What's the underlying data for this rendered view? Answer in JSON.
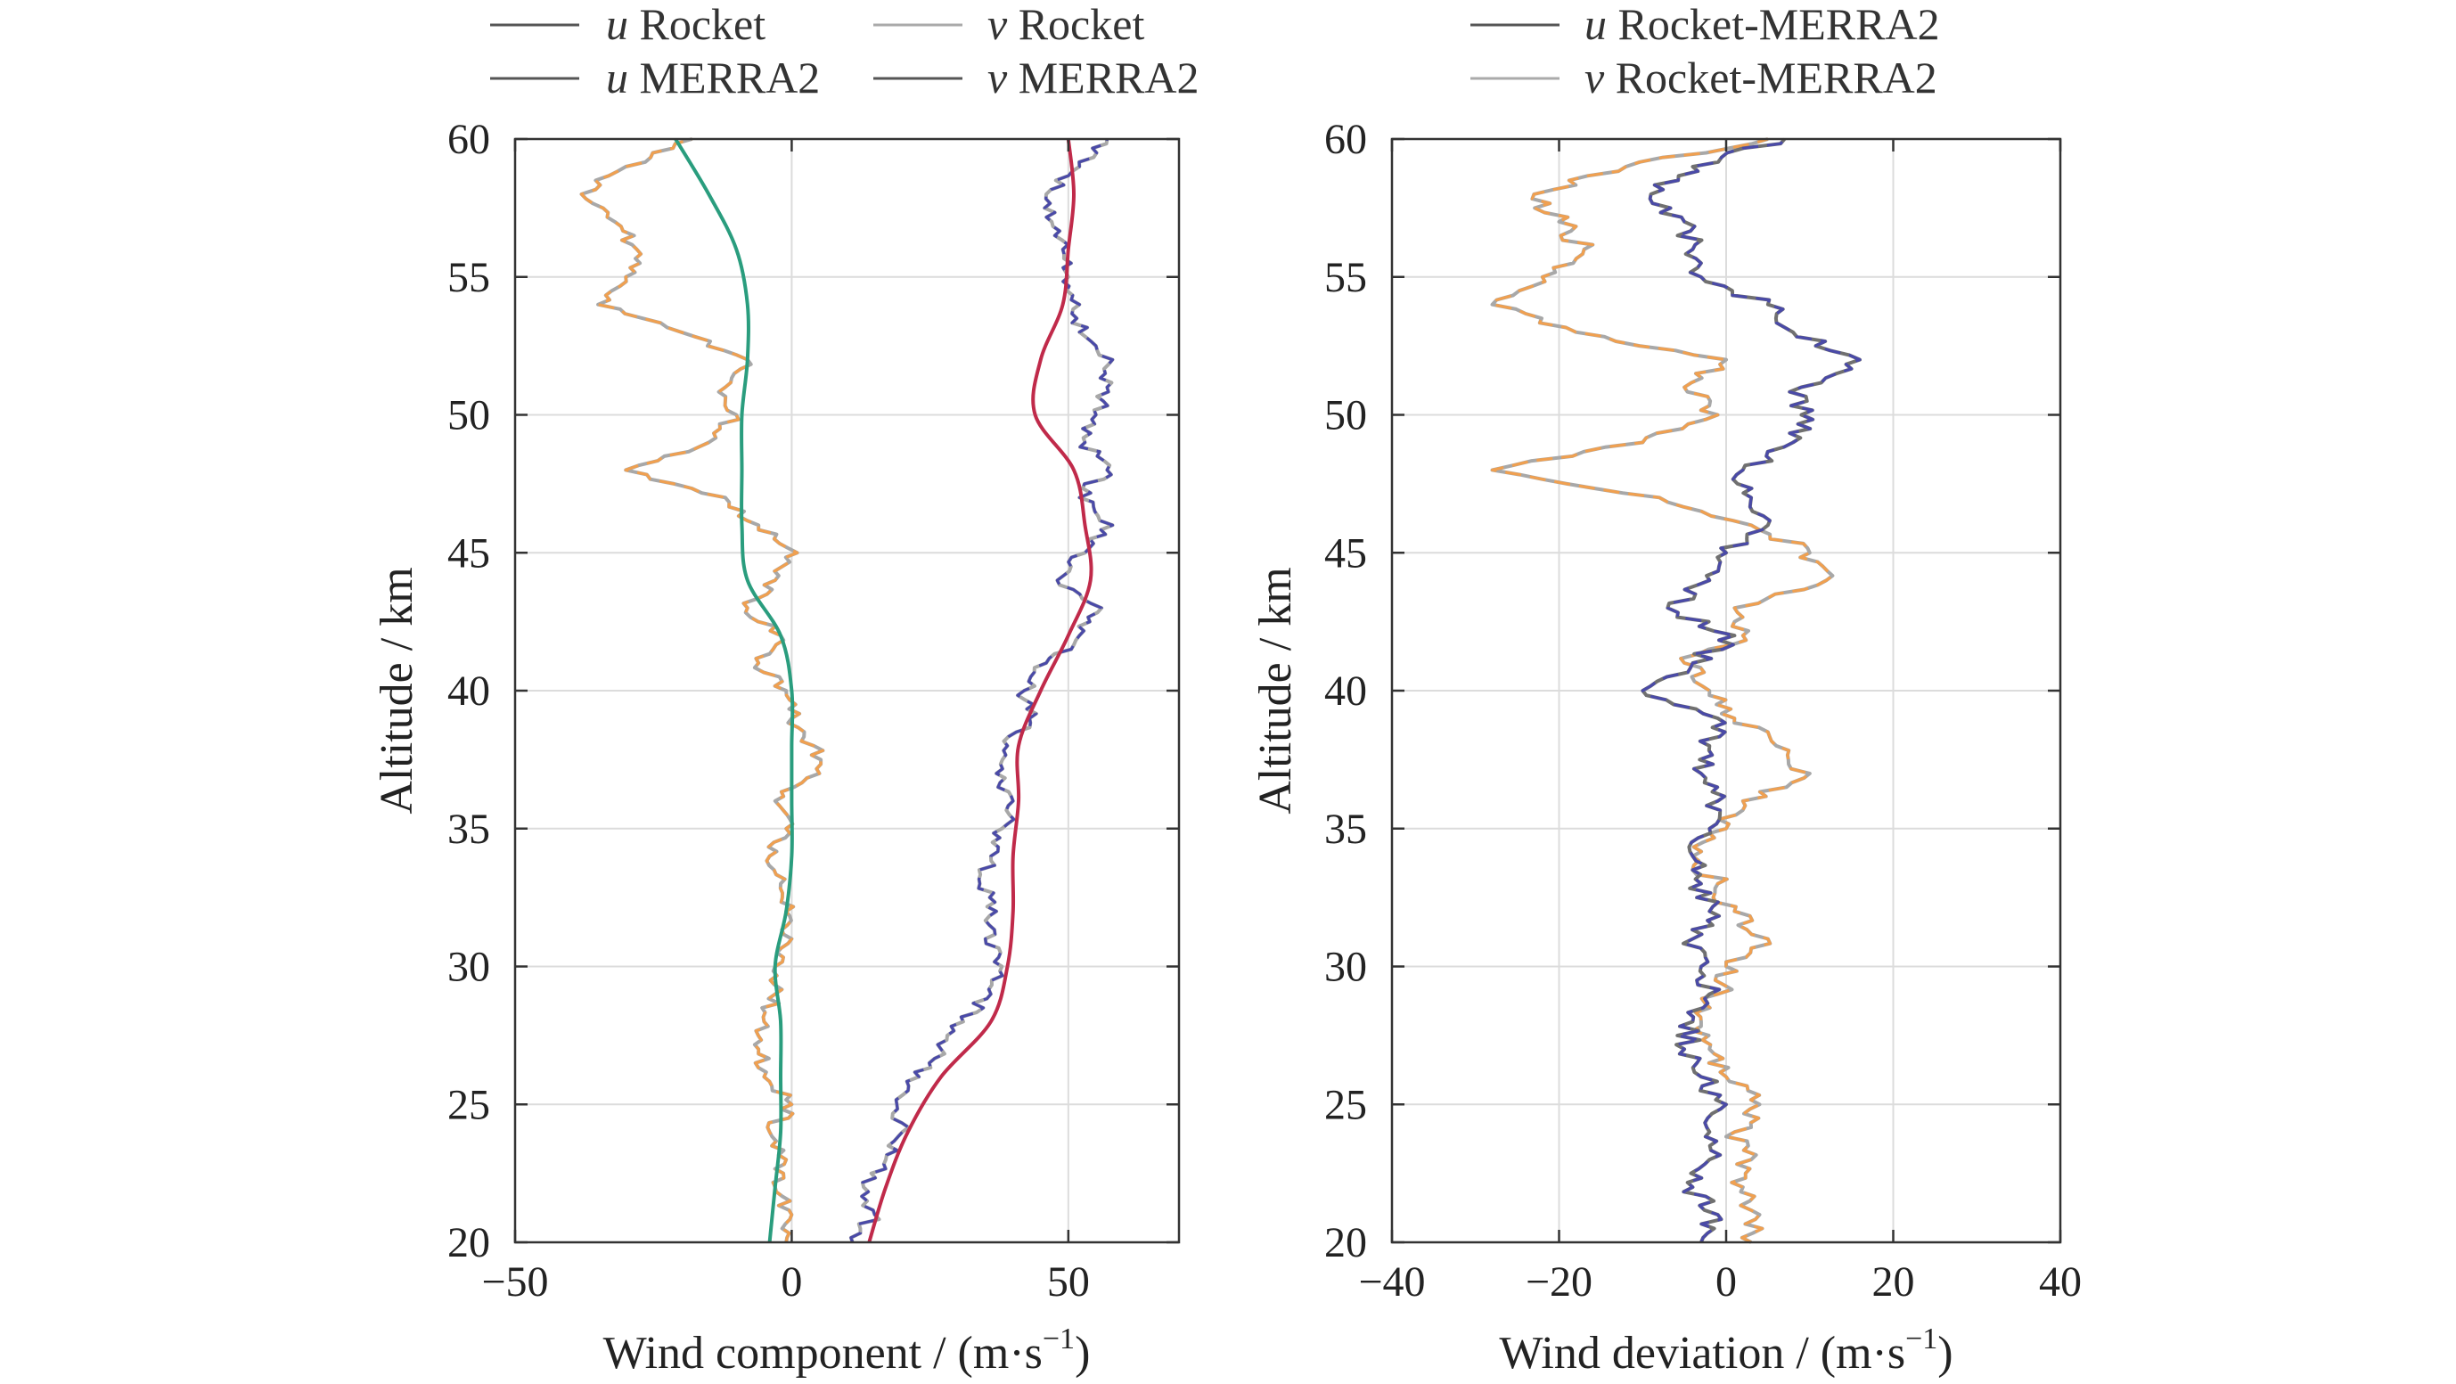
{
  "chart_data": [
    {
      "type": "line",
      "orientation": "profile",
      "xlabel": "Wind component / (m·s",
      "xlabel_sup": "−1",
      "xlabel_end": ")",
      "ylabel": "Altitude / km",
      "xlim": [
        -50,
        70
      ],
      "ylim": [
        20,
        60
      ],
      "xticks": [
        -50,
        0,
        50
      ],
      "xtick_labels": [
        "−50",
        "0",
        "50"
      ],
      "yticks": [
        20,
        25,
        30,
        35,
        40,
        45,
        50,
        55,
        60
      ],
      "ytick_labels": [
        "20",
        "25",
        "30",
        "35",
        "40",
        "45",
        "50",
        "55",
        "60"
      ],
      "grid": true,
      "legend": [
        "u Rocket",
        "v Rocket",
        "u MERRA2",
        "v MERRA2"
      ],
      "series": [
        {
          "name": "u Rocket",
          "var": "u",
          "label": " Rocket",
          "color": "#f0a050",
          "color2": "#a8a8a8",
          "style": "noisy",
          "y": [
            20,
            21,
            22,
            23,
            24,
            25,
            26,
            27,
            28,
            29,
            30,
            31,
            32,
            33,
            34,
            35,
            36,
            37,
            38,
            39,
            40,
            41,
            42,
            43,
            44,
            45,
            46,
            47,
            48,
            49,
            50,
            51,
            52,
            53,
            54,
            55,
            56,
            57,
            58,
            59,
            60
          ],
          "x": [
            -1,
            0,
            -3,
            -1,
            -4,
            0,
            -5,
            -6,
            -5,
            -3,
            -3,
            0,
            -1,
            -2,
            -4,
            -1,
            -3,
            5,
            4,
            0,
            -1,
            -6,
            -2,
            -8,
            -3,
            1,
            -6,
            -12,
            -30,
            -15,
            -10,
            -12,
            -8,
            -20,
            -35,
            -30,
            -28,
            -32,
            -38,
            -30,
            -18
          ]
        },
        {
          "name": "v Rocket",
          "var": "v",
          "label": " Rocket",
          "color": "#4a4aa8",
          "color2": "#a8a8a8",
          "style": "noisy",
          "y": [
            20,
            21,
            22,
            23,
            24,
            25,
            26,
            27,
            28,
            29,
            30,
            31,
            32,
            33,
            34,
            35,
            36,
            37,
            38,
            39,
            40,
            41,
            42,
            43,
            44,
            45,
            46,
            47,
            48,
            49,
            50,
            51,
            52,
            53,
            54,
            55,
            56,
            57,
            58,
            59,
            60
          ],
          "x": [
            11,
            15,
            13,
            17,
            20,
            19,
            23,
            27,
            31,
            36,
            38,
            35,
            37,
            34,
            36,
            38,
            40,
            37,
            39,
            43,
            42,
            46,
            52,
            56,
            48,
            53,
            58,
            52,
            57,
            53,
            55,
            57,
            58,
            52,
            52,
            50,
            49,
            47,
            46,
            52,
            57
          ]
        },
        {
          "name": "u MERRA2",
          "var": "u",
          "label": " MERRA2",
          "color": "#2a9d7e",
          "style": "smooth",
          "y": [
            20,
            22,
            24,
            26,
            28,
            30,
            32,
            34,
            36,
            38,
            40,
            42,
            44,
            46,
            48,
            50,
            52,
            54,
            56,
            58,
            60
          ],
          "x": [
            -4,
            -3,
            -2,
            -2,
            -2,
            -3,
            -1,
            0,
            0,
            0,
            0,
            -2,
            -8,
            -9,
            -9,
            -9,
            -8,
            -8,
            -10,
            -15,
            -21
          ]
        },
        {
          "name": "v MERRA2",
          "var": "v",
          "label": " MERRA2",
          "color": "#c02a4a",
          "style": "smooth",
          "y": [
            20,
            22,
            24,
            26,
            28,
            30,
            32,
            34,
            36,
            38,
            40,
            42,
            44,
            46,
            48,
            50,
            52,
            54,
            56,
            58,
            60
          ],
          "x": [
            14,
            17,
            21,
            27,
            36,
            39,
            40,
            40,
            41,
            41,
            45,
            50,
            54,
            53,
            51,
            44,
            45,
            49,
            50,
            51,
            50
          ]
        }
      ]
    },
    {
      "type": "line",
      "orientation": "profile",
      "xlabel": "Wind deviation / (m·s",
      "xlabel_sup": "−1",
      "xlabel_end": ")",
      "ylabel": "Altitude / km",
      "xlim": [
        -40,
        40
      ],
      "ylim": [
        20,
        60
      ],
      "xticks": [
        -40,
        -20,
        0,
        20,
        40
      ],
      "xtick_labels": [
        "−40",
        "−20",
        "0",
        "20",
        "40"
      ],
      "yticks": [
        20,
        25,
        30,
        35,
        40,
        45,
        50,
        55,
        60
      ],
      "ytick_labels": [
        "20",
        "25",
        "30",
        "35",
        "40",
        "45",
        "50",
        "55",
        "60"
      ],
      "grid": true,
      "legend": [
        "u Rocket-MERRA2",
        "v Rocket-MERRA2"
      ],
      "series": [
        {
          "name": "u Rocket-MERRA2",
          "var": "u",
          "label": " Rocket-MERRA2",
          "color": "#f0a050",
          "color2": "#a8a8a8",
          "style": "noisy",
          "y": [
            20,
            21,
            22,
            23,
            24,
            25,
            26,
            27,
            28,
            29,
            30,
            31,
            32,
            33,
            34,
            35,
            36,
            37,
            38,
            39,
            40,
            41,
            42,
            43,
            44,
            45,
            46,
            47,
            48,
            49,
            50,
            51,
            52,
            53,
            54,
            55,
            56,
            57,
            58,
            59,
            60
          ],
          "x": [
            3,
            4,
            2,
            3,
            1,
            4,
            0,
            -2,
            -3,
            -1,
            0,
            5,
            1,
            -1,
            -4,
            0,
            2,
            10,
            6,
            1,
            -2,
            -5,
            2,
            1,
            12,
            10,
            3,
            -8,
            -28,
            -10,
            -1,
            -5,
            0,
            -18,
            -28,
            -22,
            -17,
            -20,
            -23,
            -12,
            5
          ]
        },
        {
          "name": "v Rocket-MERRA2",
          "var": "v",
          "label": " Rocket-MERRA2",
          "color": "#4a4aa8",
          "color2": "#707070",
          "style": "noisy",
          "y": [
            20,
            21,
            22,
            23,
            24,
            25,
            26,
            27,
            28,
            29,
            30,
            31,
            32,
            33,
            34,
            35,
            36,
            37,
            38,
            39,
            40,
            41,
            42,
            43,
            44,
            45,
            46,
            47,
            48,
            49,
            50,
            51,
            52,
            53,
            54,
            55,
            56,
            57,
            58,
            59,
            60
          ],
          "x": [
            -3,
            -1,
            -4,
            -2,
            -2,
            0,
            -3,
            -5,
            -4,
            -2,
            -3,
            -4,
            -2,
            -3,
            -4,
            -2,
            -1,
            -3,
            -2,
            -1,
            -10,
            -4,
            1,
            -7,
            -2,
            0,
            5,
            3,
            2,
            8,
            9,
            9,
            16,
            8,
            5,
            -3,
            -4,
            -5,
            -9,
            -4,
            7
          ]
        }
      ]
    }
  ]
}
